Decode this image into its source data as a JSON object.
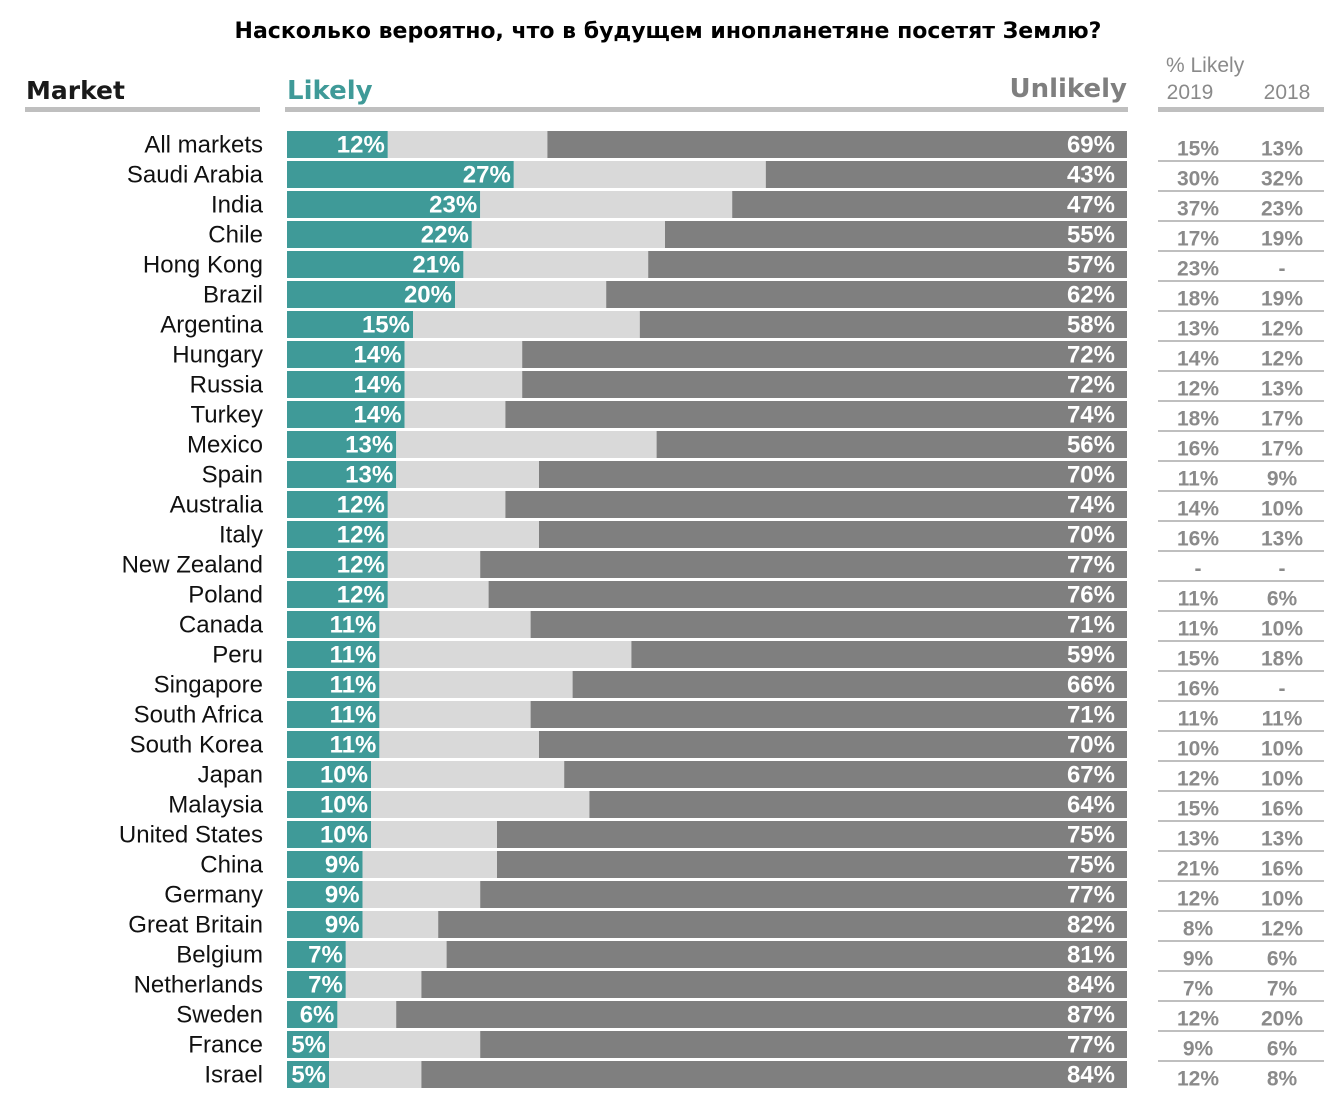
{
  "chart_data": {
    "type": "bar",
    "stacked": true,
    "orientation": "horizontal",
    "title": "Насколько вероятно, что в будущем инопланетяне посетят Землю?",
    "column_header": "Market",
    "likely_label": "Likely",
    "unlikely_label": "Unlikely",
    "comparison_header": "% Likely",
    "comparison_years": [
      "2019",
      "2018"
    ],
    "xlim": [
      0,
      100
    ],
    "colors": {
      "likely": "#3f9a98",
      "neutral": "#d9d9d9",
      "unlikely": "#7f7f7f",
      "rule": "#bfbfbf"
    },
    "categories": [
      "All markets",
      "Saudi Arabia",
      "India",
      "Chile",
      "Hong Kong",
      "Brazil",
      "Argentina",
      "Hungary",
      "Russia",
      "Turkey",
      "Mexico",
      "Spain",
      "Australia",
      "Italy",
      "New Zealand",
      "Poland",
      "Canada",
      "Peru",
      "Singapore",
      "South Africa",
      "South Korea",
      "Japan",
      "Malaysia",
      "United States",
      "China",
      "Germany",
      "Great Britain",
      "Belgium",
      "Netherlands",
      "Sweden",
      "France",
      "Israel"
    ],
    "likely": [
      12,
      27,
      23,
      22,
      21,
      20,
      15,
      14,
      14,
      14,
      13,
      13,
      12,
      12,
      12,
      12,
      11,
      11,
      11,
      11,
      11,
      10,
      10,
      10,
      9,
      9,
      9,
      7,
      7,
      6,
      5,
      5
    ],
    "unlikely": [
      69,
      43,
      47,
      55,
      57,
      62,
      58,
      72,
      72,
      74,
      56,
      70,
      74,
      70,
      77,
      76,
      71,
      59,
      66,
      71,
      70,
      67,
      64,
      75,
      75,
      77,
      82,
      81,
      84,
      87,
      77,
      84
    ],
    "likely_2019": [
      "15%",
      "30%",
      "37%",
      "17%",
      "23%",
      "18%",
      "13%",
      "14%",
      "12%",
      "18%",
      "16%",
      "11%",
      "14%",
      "16%",
      "-",
      "11%",
      "11%",
      "15%",
      "16%",
      "11%",
      "10%",
      "12%",
      "15%",
      "13%",
      "21%",
      "12%",
      "8%",
      "9%",
      "7%",
      "12%",
      "9%",
      "12%"
    ],
    "likely_2018": [
      "13%",
      "32%",
      "23%",
      "19%",
      "-",
      "19%",
      "12%",
      "12%",
      "13%",
      "17%",
      "17%",
      "9%",
      "10%",
      "13%",
      "-",
      "6%",
      "10%",
      "18%",
      "-",
      "11%",
      "10%",
      "10%",
      "16%",
      "13%",
      "16%",
      "10%",
      "12%",
      "6%",
      "7%",
      "20%",
      "6%",
      "8%"
    ]
  }
}
